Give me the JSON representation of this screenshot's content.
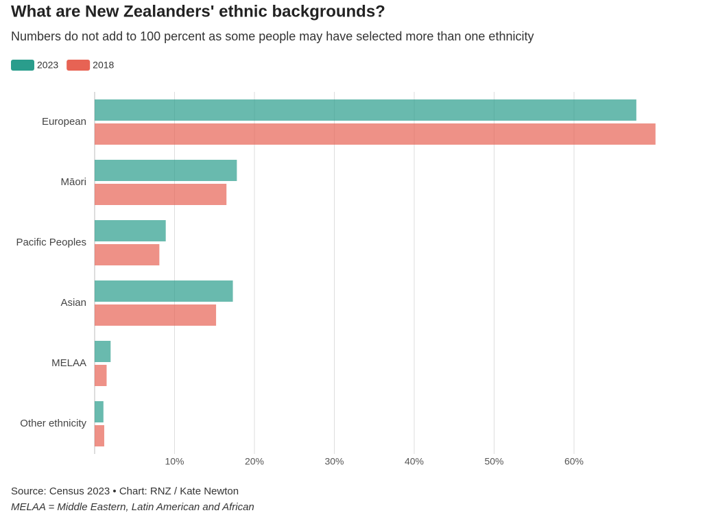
{
  "chart_data": {
    "type": "hbar",
    "title": "What are New Zealanders' ethnic backgrounds?",
    "subtitle": "Numbers do not add to 100 percent as some people may have selected more than one ethnicity",
    "categories": [
      "European",
      "Māori",
      "Pacific Peoples",
      "Asian",
      "MELAA",
      "Other ethnicity"
    ],
    "series": [
      {
        "name": "2023",
        "color": "#2a9d8c",
        "values": [
          67.8,
          17.8,
          8.9,
          17.3,
          2.0,
          1.1
        ]
      },
      {
        "name": "2018",
        "color": "#e76354",
        "values": [
          70.2,
          16.5,
          8.1,
          15.2,
          1.5,
          1.2
        ]
      }
    ],
    "xlim": [
      0,
      71
    ],
    "xticks": [
      {
        "value": 10,
        "label": "10%"
      },
      {
        "value": 20,
        "label": "20%"
      },
      {
        "value": 30,
        "label": "30%"
      },
      {
        "value": 40,
        "label": "40%"
      },
      {
        "value": 50,
        "label": "50%"
      },
      {
        "value": 60,
        "label": "60%"
      }
    ],
    "grid": true,
    "legend": "top-left",
    "source": "Source: Census 2023 • Chart: RNZ / Kate Newton",
    "note": "MELAA = Middle Eastern, Latin American and African"
  }
}
